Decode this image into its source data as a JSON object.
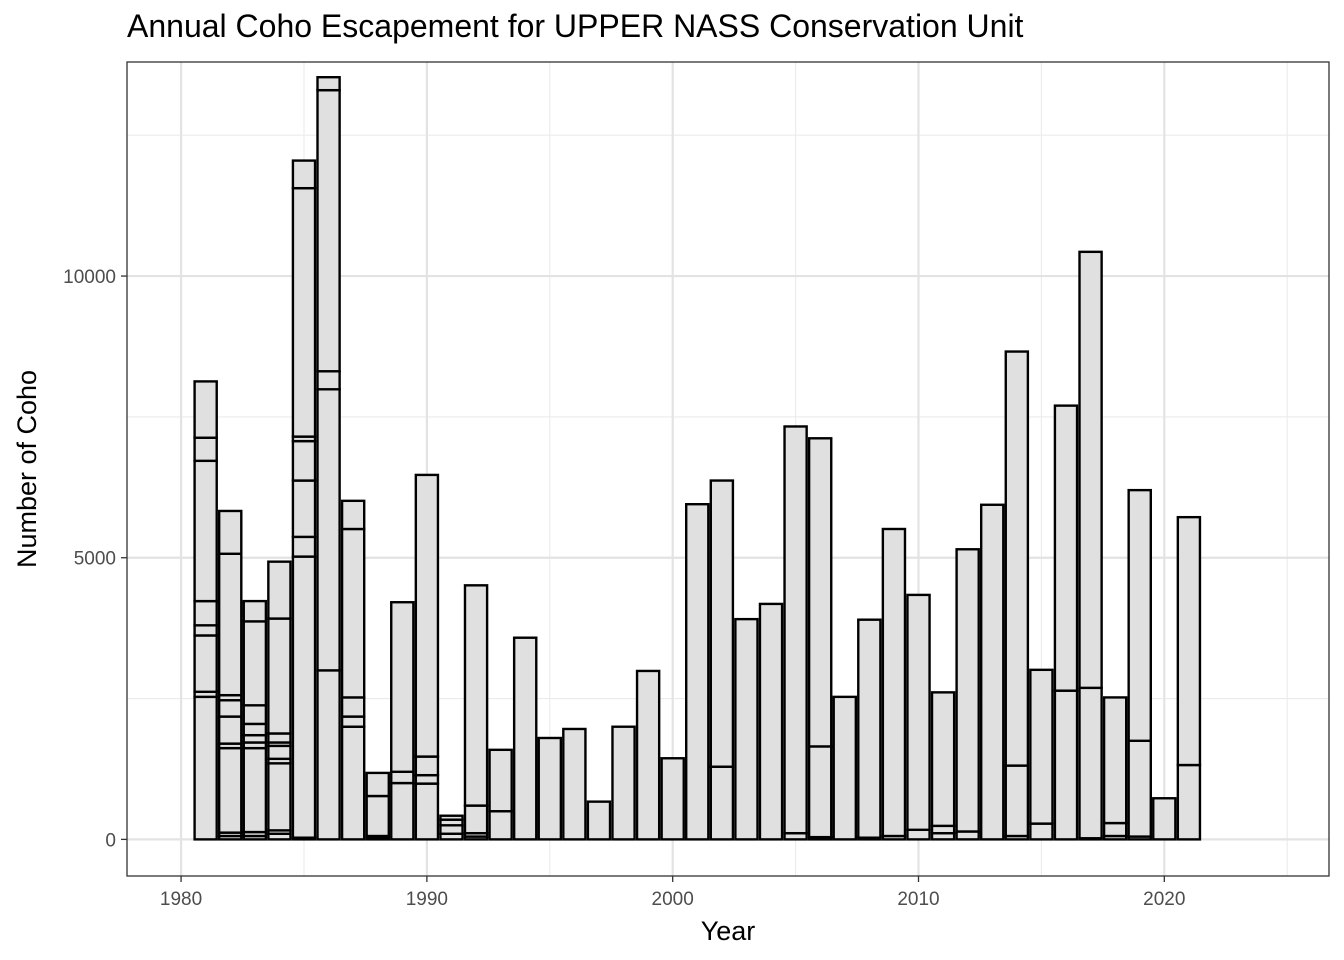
{
  "chart_data": {
    "type": "bar",
    "stacked": true,
    "title": "Annual Coho Escapement for UPPER NASS Conservation Unit",
    "xlabel": "Year",
    "ylabel": "Number of Coho",
    "xlim": [
      1977.8,
      2026.7
    ],
    "ylim": [
      -650,
      13800
    ],
    "x_ticks": [
      1980,
      1990,
      2000,
      2010,
      2020
    ],
    "y_ticks": [
      0,
      5000,
      10000
    ],
    "grid": true,
    "legend": "none",
    "bar_fill": "#e0e0e0",
    "bar_stroke": "#000000",
    "bars": [
      {
        "year": 1981,
        "boundaries": [
          0,
          2530,
          2620,
          3620,
          3800,
          4230,
          6720,
          7130,
          8130
        ]
      },
      {
        "year": 1982,
        "boundaries": [
          0,
          60,
          120,
          1620,
          1700,
          2180,
          2470,
          2560,
          5070,
          5830
        ]
      },
      {
        "year": 1983,
        "boundaries": [
          0,
          60,
          130,
          1620,
          1720,
          1850,
          2050,
          2380,
          3870,
          4230
        ]
      },
      {
        "year": 1984,
        "boundaries": [
          0,
          100,
          160,
          1350,
          1430,
          1660,
          1720,
          1880,
          3920,
          4930
        ]
      },
      {
        "year": 1985,
        "boundaries": [
          0,
          30,
          5020,
          5370,
          6370,
          7070,
          7150,
          11560,
          12050
        ]
      },
      {
        "year": 1986,
        "boundaries": [
          0,
          3000,
          7990,
          8310,
          13300,
          13530
        ]
      },
      {
        "year": 1987,
        "boundaries": [
          0,
          2000,
          2180,
          2520,
          5510,
          6010
        ]
      },
      {
        "year": 1988,
        "boundaries": [
          0,
          20,
          60,
          770,
          1180
        ]
      },
      {
        "year": 1989,
        "boundaries": [
          0,
          1000,
          1200,
          4210
        ]
      },
      {
        "year": 1990,
        "boundaries": [
          0,
          990,
          1140,
          1470,
          6470
        ]
      },
      {
        "year": 1991,
        "boundaries": [
          0,
          100,
          250,
          350,
          420
        ]
      },
      {
        "year": 1992,
        "boundaries": [
          0,
          50,
          110,
          600,
          4510
        ]
      },
      {
        "year": 1993,
        "boundaries": [
          0,
          500,
          1590
        ]
      },
      {
        "year": 1994,
        "boundaries": [
          0,
          3580
        ]
      },
      {
        "year": 1995,
        "boundaries": [
          0,
          1800
        ]
      },
      {
        "year": 1996,
        "boundaries": [
          0,
          1960
        ]
      },
      {
        "year": 1997,
        "boundaries": [
          0,
          670
        ]
      },
      {
        "year": 1998,
        "boundaries": [
          0,
          2000
        ]
      },
      {
        "year": 1999,
        "boundaries": [
          0,
          2990
        ]
      },
      {
        "year": 2000,
        "boundaries": [
          0,
          1440
        ]
      },
      {
        "year": 2001,
        "boundaries": [
          0,
          5950
        ]
      },
      {
        "year": 2002,
        "boundaries": [
          0,
          1290,
          6370
        ]
      },
      {
        "year": 2003,
        "boundaries": [
          0,
          3910
        ]
      },
      {
        "year": 2004,
        "boundaries": [
          0,
          4180
        ]
      },
      {
        "year": 2005,
        "boundaries": [
          0,
          110,
          7330
        ]
      },
      {
        "year": 2006,
        "boundaries": [
          0,
          40,
          1650,
          7120
        ]
      },
      {
        "year": 2007,
        "boundaries": [
          0,
          2530
        ]
      },
      {
        "year": 2008,
        "boundaries": [
          0,
          30,
          3900
        ]
      },
      {
        "year": 2009,
        "boundaries": [
          0,
          60,
          5510
        ]
      },
      {
        "year": 2010,
        "boundaries": [
          0,
          170,
          4340
        ]
      },
      {
        "year": 2011,
        "boundaries": [
          0,
          110,
          240,
          2610
        ]
      },
      {
        "year": 2012,
        "boundaries": [
          0,
          140,
          5150
        ]
      },
      {
        "year": 2013,
        "boundaries": [
          0,
          5940
        ]
      },
      {
        "year": 2014,
        "boundaries": [
          0,
          60,
          1310,
          8660
        ]
      },
      {
        "year": 2015,
        "boundaries": [
          0,
          280,
          3010
        ]
      },
      {
        "year": 2016,
        "boundaries": [
          0,
          2640,
          7700
        ]
      },
      {
        "year": 2017,
        "boundaries": [
          0,
          20,
          2690,
          10430
        ]
      },
      {
        "year": 2018,
        "boundaries": [
          0,
          60,
          290,
          2520
        ]
      },
      {
        "year": 2019,
        "boundaries": [
          0,
          50,
          1750,
          6200
        ]
      },
      {
        "year": 2020,
        "boundaries": [
          0,
          730
        ]
      },
      {
        "year": 2021,
        "boundaries": [
          0,
          1320,
          5720
        ]
      }
    ]
  }
}
